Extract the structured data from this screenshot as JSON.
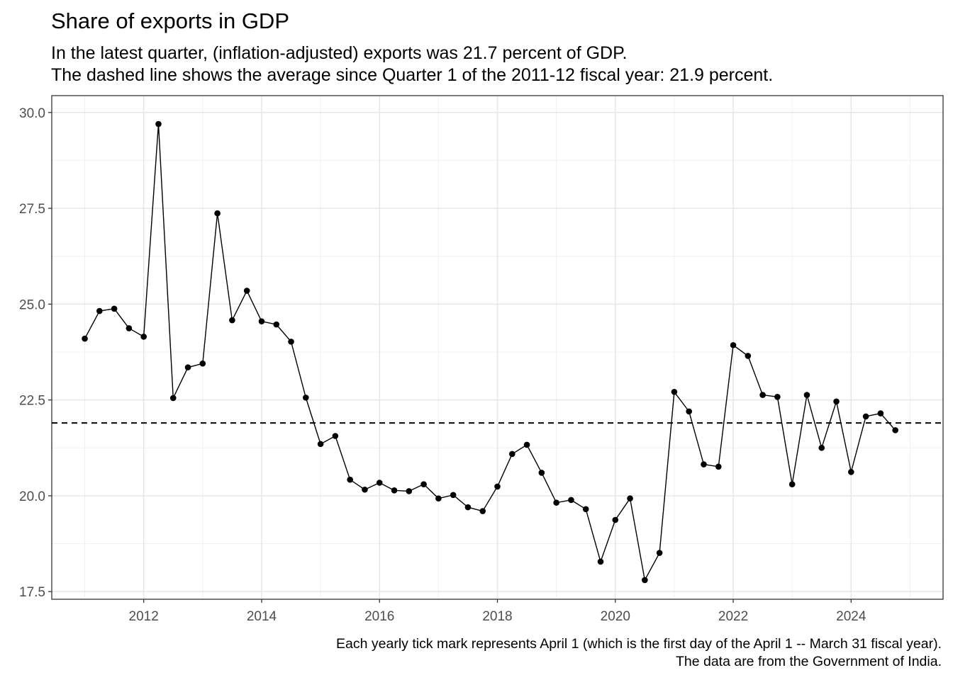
{
  "chart_data": {
    "type": "line",
    "title": "Share of exports in GDP",
    "subtitle": [
      "In the latest quarter, (inflation-adjusted) exports was 21.7 percent of GDP.",
      "The dashed line shows the average since Quarter 1 of the 2011-12 fiscal year: 21.9 percent."
    ],
    "caption": [
      "Each yearly tick mark represents April 1 (which is the first day of the April 1 -- March 31 fiscal year).",
      "The data are from the Government of India."
    ],
    "xlabel": "",
    "ylabel": "",
    "xlim": [
      2010.44,
      2025.56
    ],
    "ylim": [
      17.3,
      30.44
    ],
    "x_ticks": [
      "2012",
      "2014",
      "2016",
      "2018",
      "2020",
      "2022",
      "2024"
    ],
    "y_ticks": [
      "17.5",
      "20.0",
      "22.5",
      "25.0",
      "27.5",
      "30.0"
    ],
    "grid": true,
    "reference_line": {
      "y": 21.9,
      "style": "dashed"
    },
    "series": [
      {
        "x": [
          2011.0,
          2011.25,
          2011.5,
          2011.75,
          2012.0,
          2012.25,
          2012.5,
          2012.75,
          2013.0,
          2013.25,
          2013.5,
          2013.75,
          2014.0,
          2014.25,
          2014.5,
          2014.75,
          2015.0,
          2015.25,
          2015.5,
          2015.75,
          2016.0,
          2016.25,
          2016.5,
          2016.75,
          2017.0,
          2017.25,
          2017.5,
          2017.75,
          2018.0,
          2018.25,
          2018.5,
          2018.75,
          2019.0,
          2019.25,
          2019.5,
          2019.75,
          2020.0,
          2020.25,
          2020.5,
          2020.75,
          2021.0,
          2021.25,
          2021.5,
          2021.75,
          2022.0,
          2022.25,
          2022.5,
          2022.75,
          2023.0,
          2023.25,
          2023.5,
          2023.75,
          2024.0,
          2024.25,
          2024.5,
          2024.75
        ],
        "values": [
          24.1,
          24.82,
          24.88,
          24.37,
          24.15,
          29.7,
          22.55,
          23.35,
          23.45,
          27.37,
          24.58,
          25.35,
          24.55,
          24.47,
          24.02,
          22.56,
          21.35,
          21.56,
          20.42,
          20.16,
          20.34,
          20.14,
          20.12,
          20.3,
          19.93,
          20.02,
          19.7,
          19.6,
          20.24,
          21.09,
          21.33,
          20.6,
          19.82,
          19.89,
          19.65,
          18.28,
          19.37,
          19.93,
          17.8,
          18.51,
          22.71,
          22.2,
          20.82,
          20.76,
          23.93,
          23.65,
          22.63,
          22.58,
          20.3,
          22.63,
          21.25,
          22.46,
          20.62,
          22.07,
          22.15,
          21.71
        ]
      }
    ]
  }
}
